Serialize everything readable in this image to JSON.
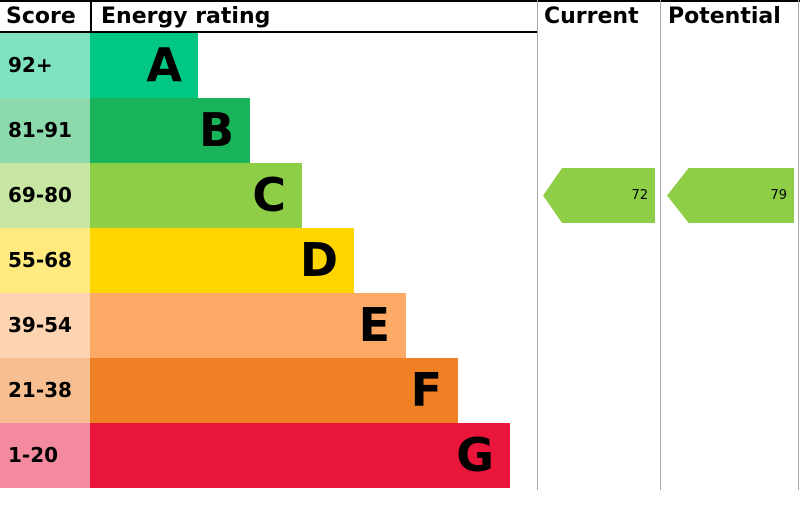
{
  "header": {
    "score": "Score",
    "energy_rating": "Energy rating",
    "current": "Current",
    "potential": "Potential"
  },
  "chart_data": {
    "type": "bar",
    "subtype": "epc-energy-rating",
    "title": "Energy rating",
    "bands": [
      {
        "letter": "A",
        "score_range": "92+",
        "color": "#00c781"
      },
      {
        "letter": "B",
        "score_range": "81-91",
        "color": "#19b459"
      },
      {
        "letter": "C",
        "score_range": "69-80",
        "color": "#8dce46"
      },
      {
        "letter": "D",
        "score_range": "55-68",
        "color": "#ffd500"
      },
      {
        "letter": "E",
        "score_range": "39-54",
        "color": "#fcaa65"
      },
      {
        "letter": "F",
        "score_range": "21-38",
        "color": "#ef8023"
      },
      {
        "letter": "G",
        "score_range": "1-20",
        "color": "#e9153b"
      }
    ],
    "current": {
      "value": "72",
      "band": "C",
      "arrow_color": "#8dce46"
    },
    "potential": {
      "value": "79",
      "band": "C",
      "arrow_color": "#8dce46"
    }
  }
}
